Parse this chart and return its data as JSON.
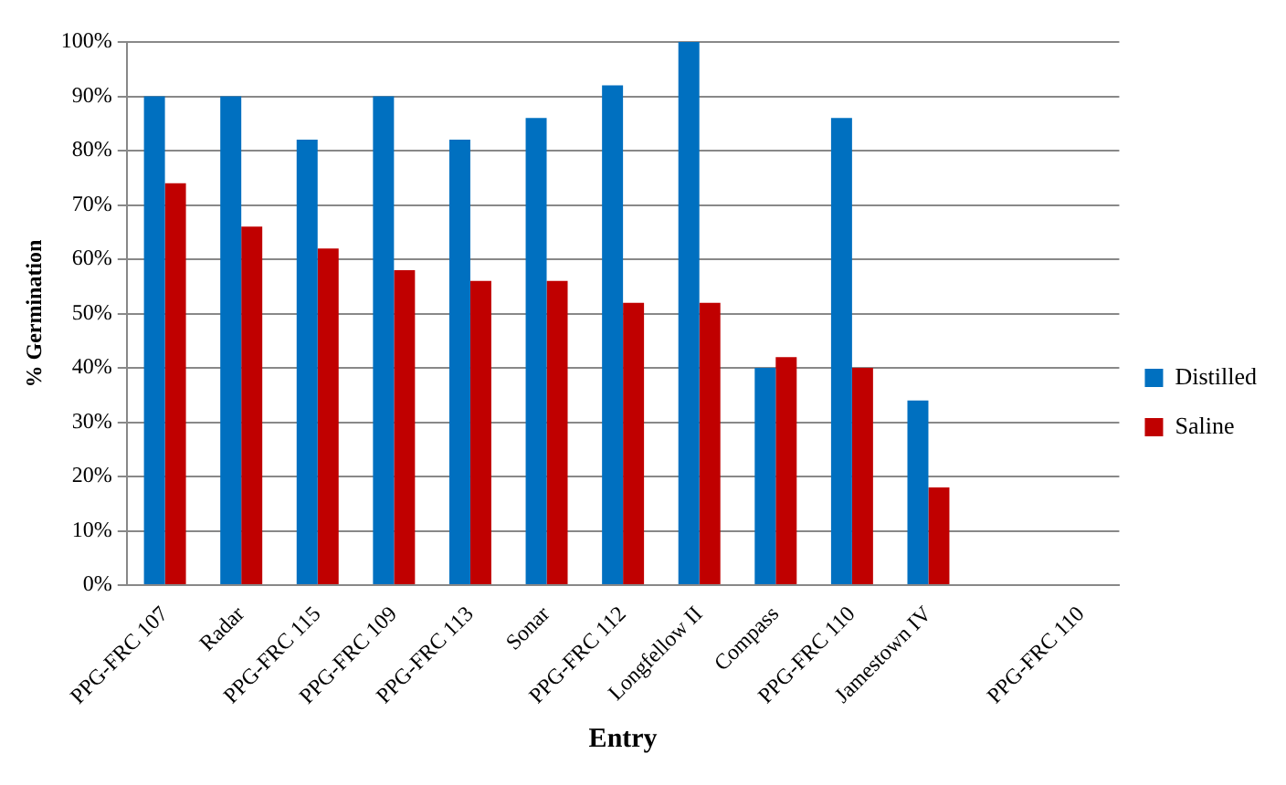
{
  "chart_data": {
    "type": "bar",
    "xlabel": "Entry",
    "ylabel": "% Germination",
    "categories": [
      "PPG-FRC 107",
      "Radar",
      "PPG-FRC 115",
      "PPG-FRC 109",
      "PPG-FRC 113",
      "Sonar",
      "PPG-FRC 112",
      "Longfellow II",
      "Compass",
      "PPG-FRC 110",
      "Jamestown IV",
      null,
      "PPG-FRC 110"
    ],
    "series": [
      {
        "name": "Distilled",
        "color": "#0070c0",
        "values": [
          90,
          90,
          82,
          90,
          82,
          86,
          92,
          100,
          40,
          86,
          34,
          null,
          null
        ]
      },
      {
        "name": "Saline",
        "color": "#c00000",
        "values": [
          74,
          66,
          62,
          58,
          56,
          56,
          52,
          52,
          42,
          40,
          18,
          null,
          null
        ]
      }
    ],
    "ylim": [
      0,
      100
    ],
    "yticks": [
      {
        "value": 0,
        "label": "0%"
      },
      {
        "value": 10,
        "label": "10%"
      },
      {
        "value": 20,
        "label": "20%"
      },
      {
        "value": 30,
        "label": "30%"
      },
      {
        "value": 40,
        "label": "40%"
      },
      {
        "value": 50,
        "label": "50%"
      },
      {
        "value": 60,
        "label": "60%"
      },
      {
        "value": 70,
        "label": "70%"
      },
      {
        "value": 80,
        "label": "80%"
      },
      {
        "value": 90,
        "label": "90%"
      },
      {
        "value": 100,
        "label": "100%"
      }
    ],
    "grid": "y",
    "legend": "right"
  }
}
